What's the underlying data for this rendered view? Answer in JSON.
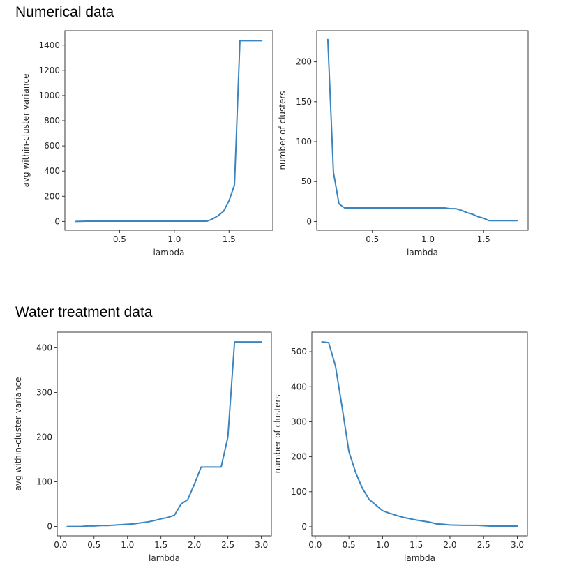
{
  "sections": [
    {
      "title": "Numerical data"
    },
    {
      "title": "Water treatment data"
    }
  ],
  "colors": {
    "line": "#3a85c0",
    "axes": "#262626",
    "background": "#ffffff"
  },
  "chart_data": [
    {
      "type": "line",
      "section": "Numerical data",
      "xlabel": "lambda",
      "ylabel": "avg within-cluster variance",
      "xlim": [
        0.0,
        1.9
      ],
      "ylim": [
        -70,
        1515
      ],
      "xticks": [
        0.5,
        1.0,
        1.5
      ],
      "xtick_labels": [
        "0.5",
        "1.0",
        "1.5"
      ],
      "yticks": [
        0,
        200,
        400,
        600,
        800,
        1000,
        1200,
        1400
      ],
      "ytick_labels": [
        "0",
        "200",
        "400",
        "600",
        "800",
        "1000",
        "1200",
        "1400"
      ],
      "grid": false,
      "series": [
        {
          "x": [
            0.1,
            0.2,
            0.3,
            0.4,
            0.5,
            0.6,
            0.7,
            0.8,
            0.9,
            1.0,
            1.1,
            1.2,
            1.25,
            1.3,
            1.35,
            1.4,
            1.45,
            1.5,
            1.55,
            1.6,
            1.65,
            1.7,
            1.75,
            1.8
          ],
          "y": [
            0,
            2,
            2,
            2,
            2,
            2,
            2,
            2,
            2,
            2,
            2,
            2,
            2,
            2,
            20,
            45,
            80,
            165,
            290,
            1435,
            1435,
            1435,
            1435,
            1435
          ]
        }
      ]
    },
    {
      "type": "line",
      "section": "Numerical data",
      "xlabel": "lambda",
      "ylabel": "number of clusters",
      "xlim": [
        0.0,
        1.9
      ],
      "ylim": [
        -11,
        239
      ],
      "xticks": [
        0.5,
        1.0,
        1.5
      ],
      "xtick_labels": [
        "0.5",
        "1.0",
        "1.5"
      ],
      "yticks": [
        0,
        50,
        100,
        150,
        200
      ],
      "ytick_labels": [
        "0",
        "50",
        "100",
        "150",
        "200"
      ],
      "grid": false,
      "series": [
        {
          "x": [
            0.1,
            0.15,
            0.2,
            0.25,
            0.3,
            0.4,
            0.5,
            0.6,
            0.7,
            0.8,
            0.9,
            1.0,
            1.1,
            1.15,
            1.2,
            1.25,
            1.3,
            1.35,
            1.4,
            1.45,
            1.5,
            1.55,
            1.6,
            1.7,
            1.8
          ],
          "y": [
            228,
            62,
            22,
            17,
            17,
            17,
            17,
            17,
            17,
            17,
            17,
            17,
            17,
            17,
            16,
            16,
            14,
            11,
            9,
            6,
            4,
            1,
            1,
            1,
            1
          ]
        }
      ]
    },
    {
      "type": "line",
      "section": "Water treatment data",
      "xlabel": "lambda",
      "ylabel": "avg within-cluster variance",
      "xlim": [
        -0.05,
        3.15
      ],
      "ylim": [
        -21,
        435
      ],
      "xticks": [
        0.0,
        0.5,
        1.0,
        1.5,
        2.0,
        2.5,
        3.0
      ],
      "xtick_labels": [
        "0.0",
        "0.5",
        "1.0",
        "1.5",
        "2.0",
        "2.5",
        "3.0"
      ],
      "yticks": [
        0,
        100,
        200,
        300,
        400
      ],
      "ytick_labels": [
        "0",
        "100",
        "200",
        "300",
        "400"
      ],
      "grid": false,
      "series": [
        {
          "x": [
            0.1,
            0.2,
            0.3,
            0.4,
            0.5,
            0.6,
            0.7,
            0.8,
            0.9,
            1.0,
            1.1,
            1.2,
            1.3,
            1.4,
            1.5,
            1.6,
            1.7,
            1.8,
            1.9,
            2.0,
            2.1,
            2.2,
            2.3,
            2.4,
            2.5,
            2.6,
            2.7,
            2.8,
            2.9,
            3.0
          ],
          "y": [
            0,
            0,
            0,
            1,
            1,
            2,
            2,
            3,
            4,
            5,
            6,
            8,
            10,
            13,
            17,
            20,
            25,
            50,
            60,
            95,
            133,
            133,
            133,
            133,
            200,
            413,
            413,
            413,
            413,
            413
          ]
        }
      ]
    },
    {
      "type": "line",
      "section": "Water treatment data",
      "xlabel": "lambda",
      "ylabel": "number of clusters",
      "xlim": [
        -0.05,
        3.15
      ],
      "ylim": [
        -26,
        556
      ],
      "xticks": [
        0.0,
        0.5,
        1.0,
        1.5,
        2.0,
        2.5,
        3.0
      ],
      "xtick_labels": [
        "0.0",
        "0.5",
        "1.0",
        "1.5",
        "2.0",
        "2.5",
        "3.0"
      ],
      "yticks": [
        0,
        100,
        200,
        300,
        400,
        500
      ],
      "ytick_labels": [
        "0",
        "100",
        "200",
        "300",
        "400",
        "500"
      ],
      "grid": false,
      "series": [
        {
          "x": [
            0.1,
            0.2,
            0.3,
            0.4,
            0.5,
            0.6,
            0.7,
            0.8,
            0.9,
            1.0,
            1.1,
            1.2,
            1.3,
            1.4,
            1.5,
            1.6,
            1.7,
            1.8,
            1.9,
            2.0,
            2.2,
            2.4,
            2.6,
            2.8,
            3.0
          ],
          "y": [
            528,
            526,
            460,
            340,
            215,
            155,
            110,
            78,
            62,
            46,
            39,
            33,
            27,
            23,
            19,
            16,
            13,
            8,
            7,
            5,
            4,
            4,
            2,
            2,
            2
          ]
        }
      ]
    }
  ]
}
